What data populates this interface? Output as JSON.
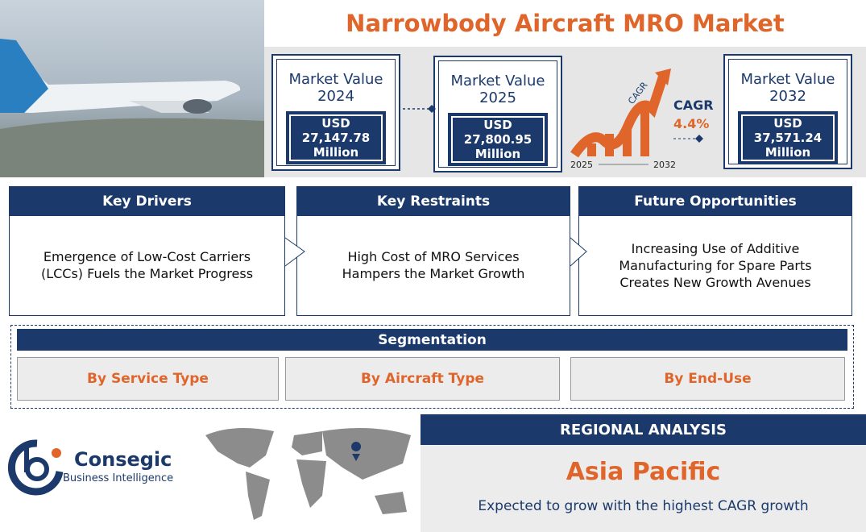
{
  "header": {
    "title": "Narrowbody Aircraft MRO Market"
  },
  "market_values": [
    {
      "label": "Market Value",
      "year": "2024",
      "value": "USD 27,147.78 Million"
    },
    {
      "label": "Market Value",
      "year": "2025",
      "value": "USD 27,800.95 Million"
    },
    {
      "label": "Market Value",
      "year": "2032",
      "value": "USD 37,571.24 Million"
    }
  ],
  "cagr": {
    "arrow_label": "CAGR",
    "label": "CAGR",
    "value": "4.4%",
    "start": "2025",
    "end": "2032"
  },
  "cards": [
    {
      "title": "Key Drivers",
      "text": "Emergence of Low-Cost Carriers (LCCs) Fuels the Market Progress"
    },
    {
      "title": "Key Restraints",
      "text": "High Cost of MRO Services Hampers the Market Growth"
    },
    {
      "title": "Future Opportunities",
      "text": "Increasing Use of Additive Manufacturing for Spare Parts Creates New Growth Avenues"
    }
  ],
  "segmentation": {
    "title": "Segmentation",
    "items": [
      "By Service Type",
      "By Aircraft Type",
      "By End-Use"
    ]
  },
  "logo": {
    "name": "Consegic",
    "tagline": "Business Intelligence"
  },
  "regional": {
    "title": "REGIONAL ANALYSIS",
    "region": "Asia Pacific",
    "text": "Expected to grow with the highest CAGR growth"
  }
}
